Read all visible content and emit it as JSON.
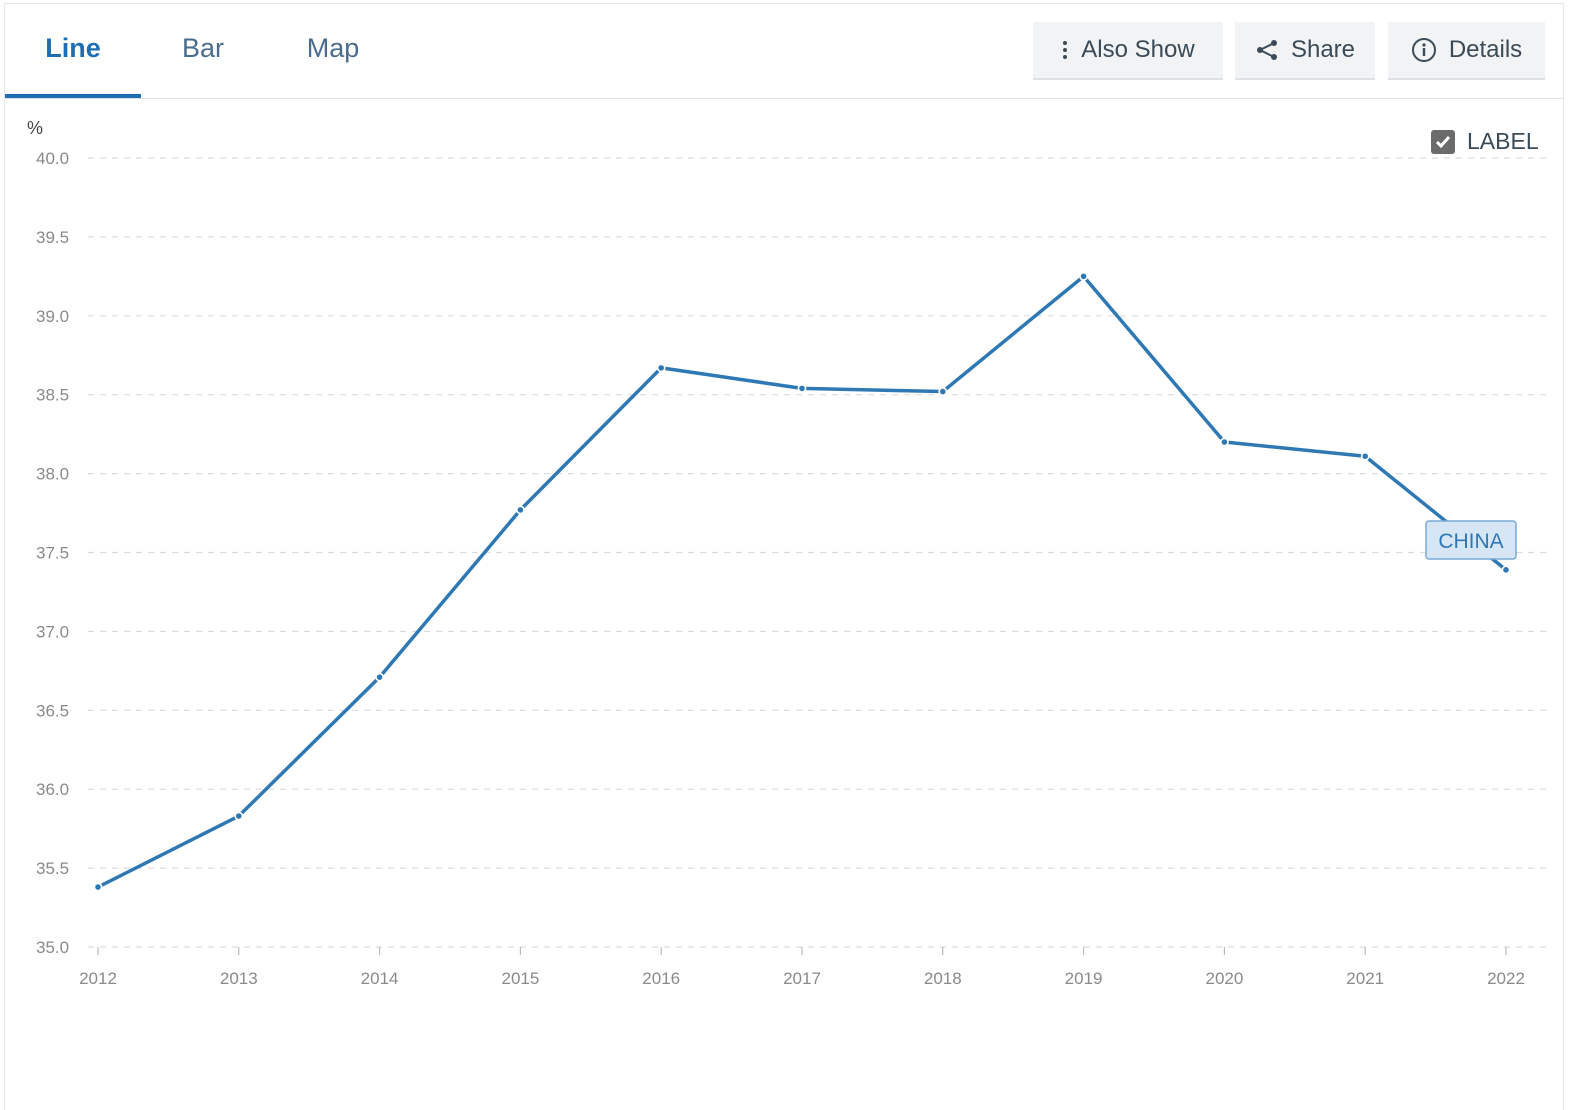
{
  "tabs": [
    {
      "label": "Line",
      "active": true
    },
    {
      "label": "Bar",
      "active": false
    },
    {
      "label": "Map",
      "active": false
    }
  ],
  "actions": {
    "also_show": {
      "label": "Also Show",
      "icon": "vertical-dots-icon"
    },
    "share": {
      "label": "Share",
      "icon": "share-icon"
    },
    "details": {
      "label": "Details",
      "icon": "info-icon"
    }
  },
  "label_toggle": {
    "label": "LABEL",
    "checked": true
  },
  "colors": {
    "accent": "#1f6db3",
    "series": "#2e78b4",
    "grid": "#dcdcdc",
    "axis_text": "#8a8a8a"
  },
  "chart_data": {
    "type": "line",
    "ylabel": "%",
    "x": [
      2012,
      2013,
      2014,
      2015,
      2016,
      2017,
      2018,
      2019,
      2020,
      2021,
      2022
    ],
    "series": [
      {
        "name": "CHINA",
        "values": [
          35.38,
          35.83,
          36.71,
          37.77,
          38.67,
          38.54,
          38.52,
          39.25,
          38.2,
          38.11,
          37.39
        ]
      }
    ],
    "ylim": [
      35.0,
      40.0
    ],
    "yticks": [
      "35.0",
      "35.5",
      "36.0",
      "36.5",
      "37.0",
      "37.5",
      "38.0",
      "38.5",
      "39.0",
      "39.5",
      "40.0"
    ],
    "xticks": [
      "2012",
      "2013",
      "2014",
      "2015",
      "2016",
      "2017",
      "2018",
      "2019",
      "2020",
      "2021",
      "2022"
    ],
    "grid": true,
    "series_label_shown": true
  }
}
